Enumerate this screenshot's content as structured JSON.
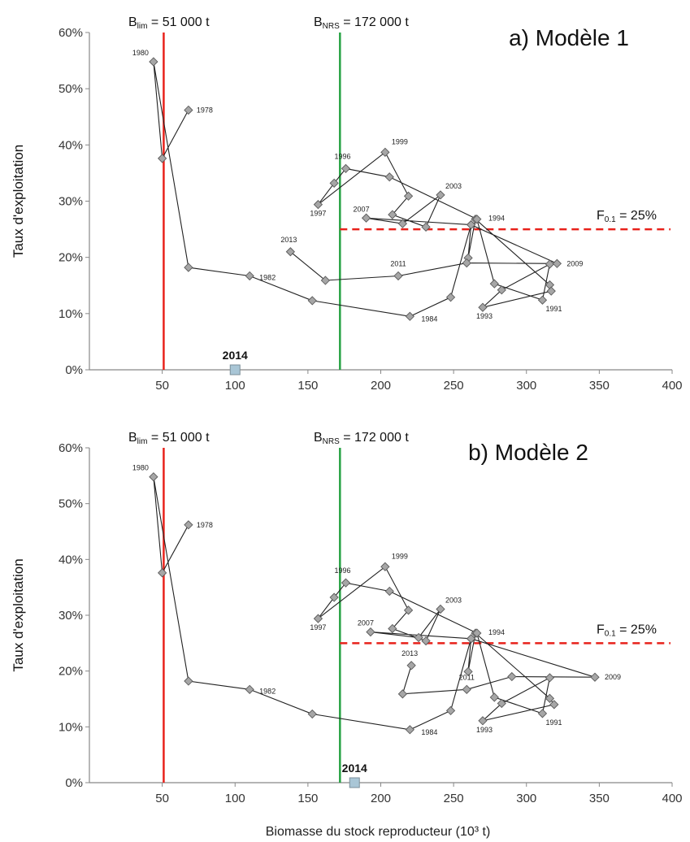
{
  "chart_data": [
    {
      "type": "line",
      "title": "a) Modèle 1",
      "ylabel": "Taux d'exploitation",
      "xlabel": "",
      "xlim": [
        0,
        400
      ],
      "ylim": [
        0,
        60
      ],
      "x_ticks": [
        "50",
        "100",
        "150",
        "200",
        "250",
        "300",
        "350",
        "400"
      ],
      "y_ticks": [
        "0%",
        "10%",
        "20%",
        "30%",
        "40%",
        "50%",
        "60%"
      ],
      "ref_lines": {
        "blim": {
          "x": 51,
          "text_main": "B",
          "text_sub": "lim",
          "text_rest": " = 51 000 t",
          "color": "#e8221b"
        },
        "bnrs": {
          "x": 172,
          "text_main": "B",
          "text_sub": "NRS",
          "text_rest": " = 172 000 t",
          "color": "#27a244"
        },
        "f01": {
          "y": 25,
          "text_main": "F",
          "text_sub": "0.1",
          "text_rest": " = 25%",
          "color": "#e8221b"
        }
      },
      "series": [
        {
          "points": [
            [
              68,
              46.2
            ],
            [
              50,
              37.6
            ],
            [
              44,
              54.8
            ],
            [
              68,
              18.2
            ],
            [
              110,
              16.7
            ],
            [
              153,
              12.3
            ],
            [
              220,
              9.5
            ],
            [
              248,
              12.9
            ],
            [
              262,
              25.8
            ],
            [
              260,
              19.9
            ],
            [
              265,
              26.8
            ],
            [
              316,
              15.1
            ],
            [
              317,
              14.0
            ],
            [
              270,
              11.1
            ],
            [
              283,
              14.2
            ],
            [
              316,
              18.8
            ],
            [
              311,
              12.4
            ],
            [
              278,
              15.3
            ],
            [
              266,
              26.8
            ],
            [
              206,
              34.3
            ],
            [
              176,
              35.8
            ],
            [
              168,
              33.2
            ],
            [
              157,
              29.4
            ],
            [
              203,
              38.7
            ],
            [
              219,
              30.9
            ],
            [
              208,
              27.6
            ],
            [
              231,
              25.4
            ],
            [
              241,
              31.1
            ],
            [
              215,
              26.0
            ],
            [
              190,
              27.0
            ],
            [
              262,
              25.8
            ],
            [
              321,
              18.9
            ],
            [
              259,
              19.0
            ],
            [
              212,
              16.7
            ],
            [
              162,
              15.9
            ],
            [
              138,
              21.0
            ]
          ]
        }
      ],
      "year_labels": [
        {
          "year": "1978",
          "x": 68,
          "y": 46.2
        },
        {
          "year": "1980",
          "x": 44,
          "y": 54.8
        },
        {
          "year": "1982",
          "x": 110,
          "y": 16.7
        },
        {
          "year": "1984",
          "x": 220,
          "y": 9.5
        },
        {
          "year": "1991",
          "x": 311,
          "y": 12.4
        },
        {
          "year": "1993",
          "x": 270,
          "y": 11.1
        },
        {
          "year": "1994",
          "x": 265,
          "y": 26.8
        },
        {
          "year": "1996",
          "x": 176,
          "y": 35.8
        },
        {
          "year": "1997",
          "x": 157,
          "y": 29.4
        },
        {
          "year": "1999",
          "x": 203,
          "y": 38.7
        },
        {
          "year": "2003",
          "x": 241,
          "y": 31.1
        },
        {
          "year": "2007",
          "x": 190,
          "y": 27.0
        },
        {
          "year": "2009",
          "x": 321,
          "y": 18.9
        },
        {
          "year": "2011",
          "x": 212,
          "y": 16.7
        },
        {
          "year": "2013",
          "x": 138,
          "y": 21.0
        }
      ],
      "point_2014": {
        "label": "2014",
        "x": 100,
        "y": 0
      }
    },
    {
      "type": "line",
      "title": "b) Modèle 2",
      "ylabel": "Taux d'exploitation",
      "xlabel": "Biomasse du stock reproducteur  (10³ t)",
      "xlim": [
        0,
        400
      ],
      "ylim": [
        0,
        60
      ],
      "x_ticks": [
        "50",
        "100",
        "150",
        "200",
        "250",
        "300",
        "350",
        "400"
      ],
      "y_ticks": [
        "0%",
        "10%",
        "20%",
        "30%",
        "40%",
        "50%",
        "60%"
      ],
      "ref_lines": {
        "blim": {
          "x": 51,
          "text_main": "B",
          "text_sub": "lim",
          "text_rest": " = 51 000 t",
          "color": "#e8221b"
        },
        "bnrs": {
          "x": 172,
          "text_main": "B",
          "text_sub": "NRS",
          "text_rest": " = 172 000 t",
          "color": "#27a244"
        },
        "f01": {
          "y": 25,
          "text_main": "F",
          "text_sub": "0.1",
          "text_rest": " = 25%",
          "color": "#e8221b"
        }
      },
      "series": [
        {
          "points": [
            [
              68,
              46.2
            ],
            [
              50,
              37.6
            ],
            [
              44,
              54.8
            ],
            [
              68,
              18.2
            ],
            [
              110,
              16.7
            ],
            [
              153,
              12.3
            ],
            [
              220,
              9.5
            ],
            [
              248,
              12.9
            ],
            [
              262,
              25.8
            ],
            [
              260,
              19.9
            ],
            [
              265,
              26.8
            ],
            [
              316,
              15.1
            ],
            [
              319,
              14.0
            ],
            [
              270,
              11.1
            ],
            [
              283,
              14.2
            ],
            [
              316,
              18.8
            ],
            [
              311,
              12.4
            ],
            [
              278,
              15.3
            ],
            [
              266,
              26.8
            ],
            [
              206,
              34.3
            ],
            [
              176,
              35.8
            ],
            [
              168,
              33.2
            ],
            [
              157,
              29.4
            ],
            [
              203,
              38.7
            ],
            [
              219,
              30.9
            ],
            [
              208,
              27.6
            ],
            [
              231,
              25.4
            ],
            [
              241,
              31.1
            ],
            [
              226,
              26.0
            ],
            [
              193,
              27.0
            ],
            [
              262,
              25.8
            ],
            [
              347,
              18.9
            ],
            [
              290,
              19.0
            ],
            [
              259,
              16.7
            ],
            [
              215,
              15.9
            ],
            [
              221,
              21.0
            ]
          ]
        }
      ],
      "year_labels": [
        {
          "year": "1978",
          "x": 68,
          "y": 46.2
        },
        {
          "year": "1980",
          "x": 44,
          "y": 54.8
        },
        {
          "year": "1982",
          "x": 110,
          "y": 16.7
        },
        {
          "year": "1984",
          "x": 220,
          "y": 9.5
        },
        {
          "year": "1991",
          "x": 311,
          "y": 12.4
        },
        {
          "year": "1993",
          "x": 270,
          "y": 11.1
        },
        {
          "year": "1994",
          "x": 265,
          "y": 26.8
        },
        {
          "year": "1996",
          "x": 176,
          "y": 35.8
        },
        {
          "year": "1997",
          "x": 157,
          "y": 29.4
        },
        {
          "year": "1999",
          "x": 203,
          "y": 38.7
        },
        {
          "year": "2003",
          "x": 241,
          "y": 31.1
        },
        {
          "year": "2007",
          "x": 193,
          "y": 27.0
        },
        {
          "year": "2009",
          "x": 347,
          "y": 18.9
        },
        {
          "year": "2011",
          "x": 259,
          "y": 16.7
        },
        {
          "year": "2013",
          "x": 221,
          "y": 21.0
        }
      ],
      "point_2014": {
        "label": "2014",
        "x": 182,
        "y": 0
      }
    }
  ]
}
